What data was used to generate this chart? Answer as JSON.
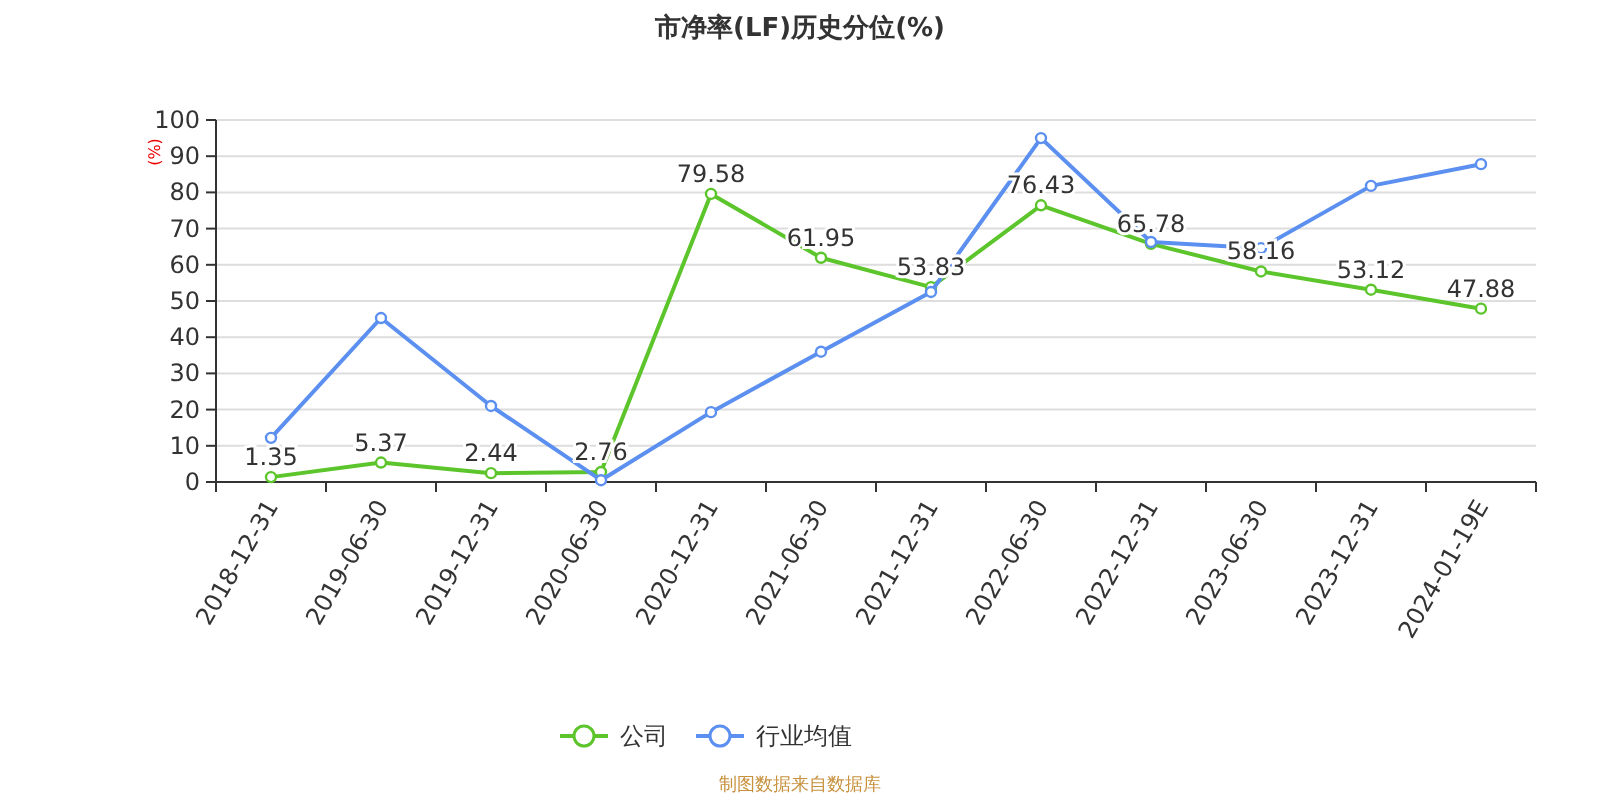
{
  "chart_data": {
    "type": "line",
    "title": "市净率(LF)历史分位(%)",
    "ylabel": "(%)",
    "categories": [
      "2018-12-31",
      "2019-06-30",
      "2019-12-31",
      "2020-06-30",
      "2020-12-31",
      "2021-06-30",
      "2021-12-31",
      "2022-06-30",
      "2022-12-31",
      "2023-06-30",
      "2023-12-31",
      "2024-01-19E"
    ],
    "series": [
      {
        "name": "公司",
        "color": "#5cc52b",
        "values": [
          1.35,
          5.37,
          2.44,
          2.76,
          79.58,
          61.95,
          53.83,
          76.43,
          65.78,
          58.16,
          53.12,
          47.88
        ],
        "value_labels": [
          "1.35",
          "5.37",
          "2.44",
          "2.76",
          "79.58",
          "61.95",
          "53.83",
          "76.43",
          "65.78",
          "58.16",
          "53.12",
          "47.88"
        ]
      },
      {
        "name": "行业均值",
        "color": "#5b8ff0",
        "values": [
          12.2,
          45.3,
          21,
          0.5,
          19.3,
          36,
          52.5,
          95,
          66.3,
          64.6,
          81.8,
          87.8
        ]
      }
    ],
    "ylim": [
      0,
      100
    ],
    "yticks": [
      0,
      10,
      20,
      30,
      40,
      50,
      60,
      70,
      80,
      90,
      100
    ],
    "grid": "y",
    "legend": "bottom",
    "marker": "circle",
    "line_style": "solid",
    "annotations": [
      "制图数据来自数据库"
    ]
  }
}
